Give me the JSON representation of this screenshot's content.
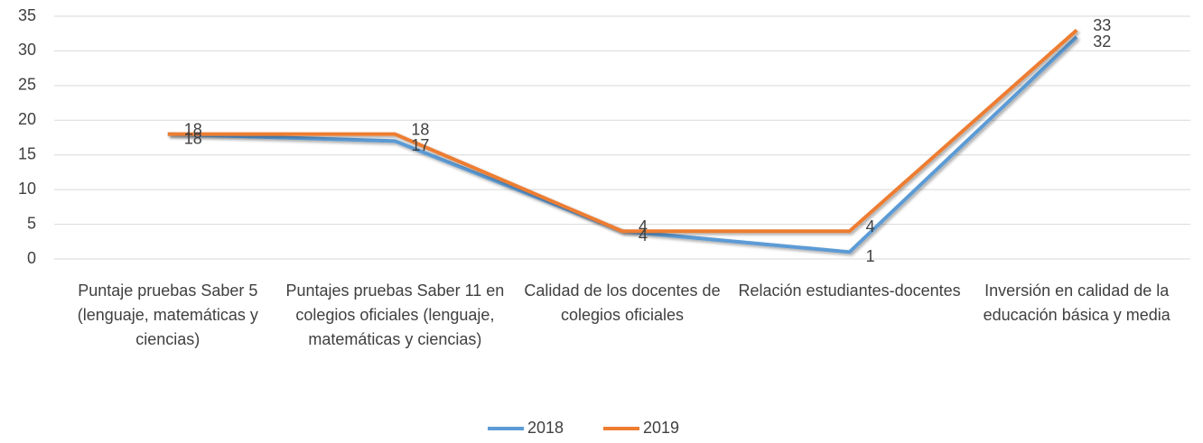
{
  "chart_data": {
    "type": "line",
    "categories": [
      "Puntaje pruebas Saber 5 (lenguaje, matemáticas y ciencias)",
      "Puntajes pruebas Saber 11 en colegios oficiales (lenguaje, matemáticas y ciencias)",
      "Calidad de los docentes de colegios oficiales",
      "Relación estudiantes-docentes",
      "Inversión en calidad de la educación básica y media"
    ],
    "series": [
      {
        "name": "2018",
        "color": "#5b9bd5",
        "values": [
          18,
          17,
          4,
          1,
          32
        ]
      },
      {
        "name": "2019",
        "color": "#ed7d31",
        "values": [
          18,
          18,
          4,
          4,
          33
        ]
      }
    ],
    "ylim": [
      0,
      35
    ],
    "yticks": [
      0,
      5,
      10,
      15,
      20,
      25,
      30,
      35
    ],
    "grid": true,
    "legend": "bottom",
    "data_labels": true
  }
}
